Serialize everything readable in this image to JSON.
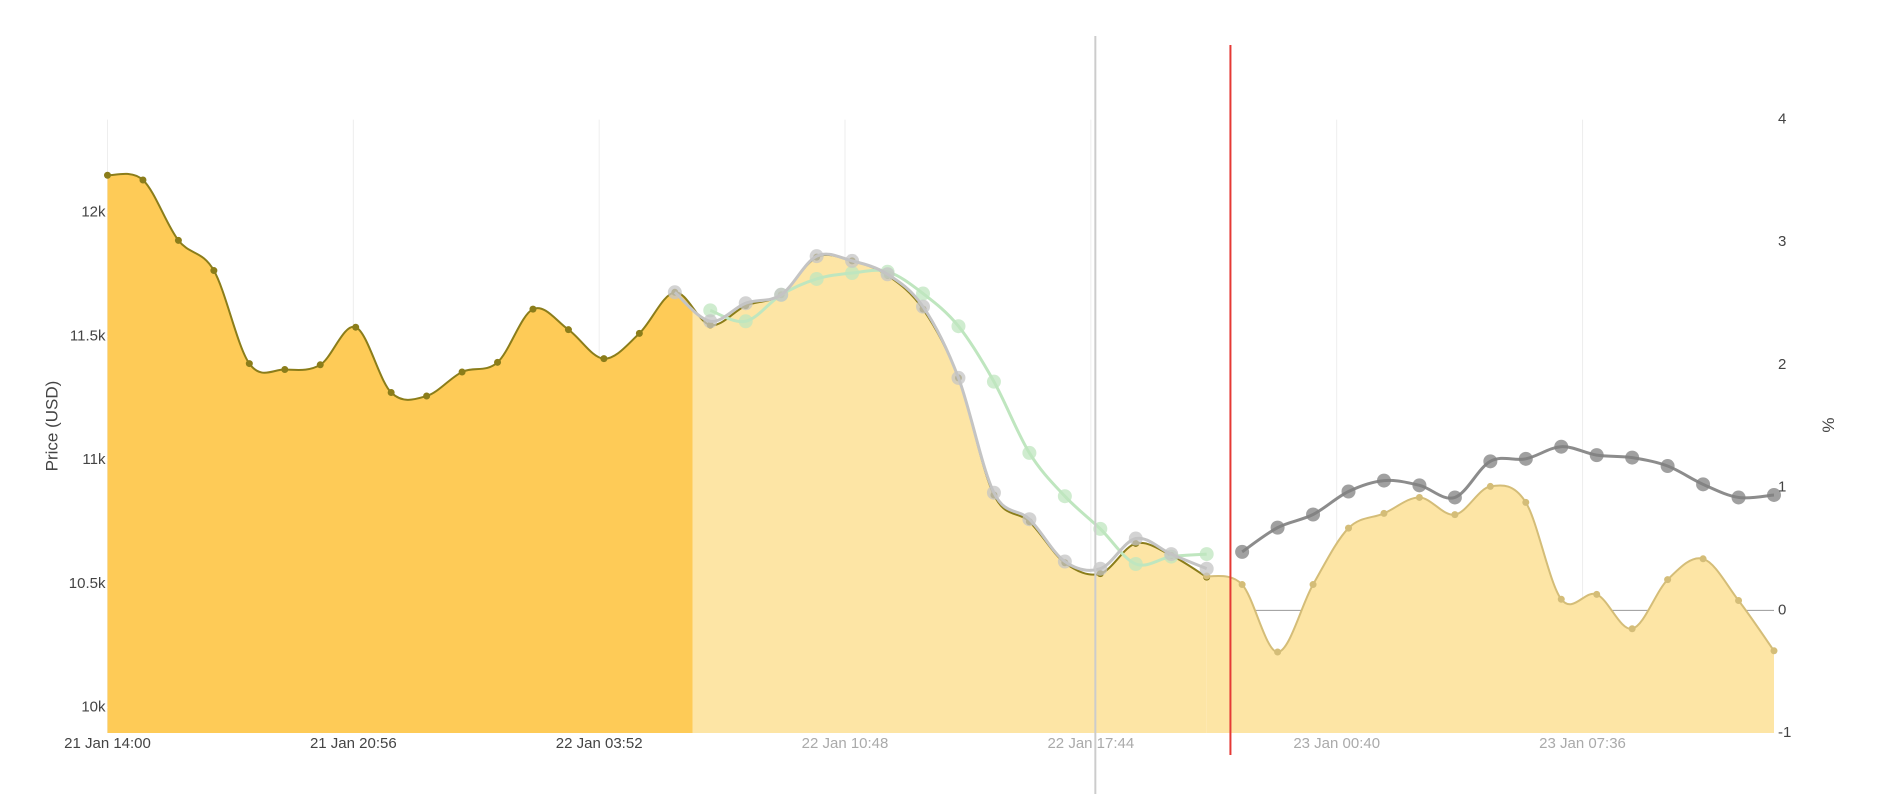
{
  "chart_data": {
    "type": "line",
    "y_title": "Price (USD)",
    "y2_title": "%",
    "xlim": [
      0,
      47
    ],
    "xticks": [
      {
        "value": 0,
        "label": "21 Jan 14:00"
      },
      {
        "value": 6.9333,
        "label": "21 Jan 20:56"
      },
      {
        "value": 13.8667,
        "label": "22 Jan 03:52"
      },
      {
        "value": 20.8,
        "label": "22 Jan 10:48"
      },
      {
        "value": 27.7333,
        "label": "22 Jan 17:44"
      },
      {
        "value": 34.6667,
        "label": "23 Jan 00:40"
      },
      {
        "value": 41.6,
        "label": "23 Jan 07:36"
      }
    ],
    "ylim": [
      9897,
      12376
    ],
    "yticks": [
      {
        "value": 10000,
        "label": "10k"
      },
      {
        "value": 10500,
        "label": "10.5k"
      },
      {
        "value": 11000,
        "label": "11k"
      },
      {
        "value": 11500,
        "label": "11.5k"
      },
      {
        "value": 12000,
        "label": "12k"
      }
    ],
    "y2lim": [
      -1,
      4
    ],
    "y2ticks": [
      -1,
      0,
      1,
      2,
      3,
      4
    ],
    "fill_colors": [
      "#fecb57",
      "#fde5a5"
    ],
    "series": [
      {
        "color": "#8b7d1a",
        "marker": "small",
        "fill": true,
        "x": [
          0,
          1,
          2,
          3,
          4,
          5,
          6,
          7,
          8,
          9,
          10,
          11,
          12,
          13,
          14,
          15,
          16,
          17,
          18,
          19,
          20,
          21,
          22,
          23,
          24,
          25,
          26,
          27,
          28,
          29,
          30,
          31
        ],
        "values": [
          12151,
          12132,
          11888,
          11766,
          11390,
          11366,
          11385,
          11537,
          11273,
          11259,
          11356,
          11395,
          11610,
          11527,
          11410,
          11512,
          11678,
          11546,
          11624,
          11668,
          11820,
          11805,
          11746,
          11610,
          11332,
          10859,
          10751,
          10585,
          10541,
          10663,
          10615,
          10527
        ]
      },
      {
        "color": "#d4bd78",
        "marker": "small",
        "fill": true,
        "axis": "y2",
        "x": [
          31,
          32,
          33,
          34,
          35,
          36,
          37,
          38,
          39,
          40,
          41,
          42,
          43,
          44,
          45,
          46,
          47
        ],
        "values": [
          0.28,
          0.21,
          -0.34,
          0.21,
          0.67,
          0.79,
          0.92,
          0.78,
          1.01,
          0.88,
          0.09,
          0.13,
          -0.15,
          0.25,
          0.42,
          0.08,
          -0.33
        ]
      },
      {
        "color": "#bfe6bf",
        "marker": "large",
        "x": [
          17,
          18,
          19,
          20,
          21,
          22,
          23,
          24,
          25,
          26,
          27,
          28,
          29,
          30,
          31
        ],
        "values": [
          11605,
          11561,
          11668,
          11732,
          11756,
          11761,
          11673,
          11541,
          11317,
          11029,
          10854,
          10722,
          10580,
          10610,
          10620
        ]
      },
      {
        "color": "#c4c4c4",
        "marker": "large",
        "x": [
          16,
          17,
          18,
          19,
          20,
          21,
          22,
          23,
          24,
          25,
          26,
          27,
          28,
          29,
          30,
          31
        ],
        "values": [
          11678,
          11561,
          11634,
          11668,
          11824,
          11805,
          11751,
          11620,
          11332,
          10868,
          10761,
          10590,
          10561,
          10683,
          10620,
          10561
        ]
      },
      {
        "color": "#808080",
        "marker": "large",
        "x": [
          32,
          33,
          34,
          35,
          36,
          37,
          38,
          39,
          40,
          41,
          42,
          43,
          44,
          45,
          46,
          47
        ],
        "values": [
          10629,
          10727,
          10780,
          10873,
          10917,
          10898,
          10849,
          10995,
          11005,
          11054,
          11020,
          11010,
          10976,
          10902,
          10849,
          10859
        ]
      }
    ]
  }
}
